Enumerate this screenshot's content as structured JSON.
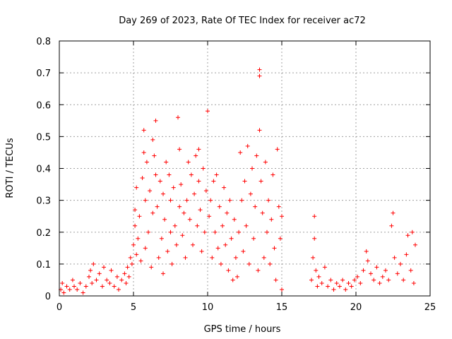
{
  "chart_data": {
    "type": "scatter",
    "title": "Day 269 of 2023, Rate Of TEC Index for receiver ac72",
    "xlabel": "GPS time / hours",
    "ylabel": "ROTI / TECUs",
    "xlim": [
      0,
      25
    ],
    "ylim": [
      0,
      0.8
    ],
    "x_ticks": [
      "0",
      "5",
      "10",
      "15",
      "20",
      "25"
    ],
    "y_ticks": [
      "0",
      "0.1",
      "0.2",
      "0.3",
      "0.4",
      "0.5",
      "0.6",
      "0.7",
      "0.8"
    ],
    "grid": true,
    "marker": "+",
    "color": "#ff0000",
    "series": [
      {
        "points": [
          [
            0.1,
            0.02
          ],
          [
            0.2,
            0.04
          ],
          [
            0.3,
            0.01
          ],
          [
            0.5,
            0.03
          ],
          [
            0.7,
            0.02
          ],
          [
            0.9,
            0.05
          ],
          [
            1.0,
            0.03
          ],
          [
            1.2,
            0.02
          ],
          [
            1.4,
            0.04
          ],
          [
            1.6,
            0.01
          ],
          [
            1.8,
            0.03
          ],
          [
            2.0,
            0.06
          ],
          [
            2.1,
            0.08
          ],
          [
            2.2,
            0.04
          ],
          [
            2.3,
            0.1
          ],
          [
            2.5,
            0.05
          ],
          [
            2.7,
            0.07
          ],
          [
            2.9,
            0.03
          ],
          [
            3.0,
            0.09
          ],
          [
            3.2,
            0.05
          ],
          [
            3.4,
            0.04
          ],
          [
            3.5,
            0.08
          ],
          [
            3.7,
            0.03
          ],
          [
            3.9,
            0.06
          ],
          [
            4.0,
            0.02
          ],
          [
            4.2,
            0.05
          ],
          [
            4.4,
            0.07
          ],
          [
            4.5,
            0.04
          ],
          [
            4.6,
            0.09
          ],
          [
            4.7,
            0.06
          ],
          [
            4.8,
            0.12
          ],
          [
            4.9,
            0.1
          ],
          [
            5.0,
            0.16
          ],
          [
            5.1,
            0.22
          ],
          [
            5.1,
            0.27
          ],
          [
            5.2,
            0.34
          ],
          [
            5.2,
            0.13
          ],
          [
            5.3,
            0.18
          ],
          [
            5.4,
            0.25
          ],
          [
            5.5,
            0.11
          ],
          [
            5.6,
            0.37
          ],
          [
            5.7,
            0.45
          ],
          [
            5.7,
            0.52
          ],
          [
            5.8,
            0.3
          ],
          [
            5.8,
            0.15
          ],
          [
            5.9,
            0.42
          ],
          [
            6.0,
            0.2
          ],
          [
            6.1,
            0.33
          ],
          [
            6.2,
            0.09
          ],
          [
            6.3,
            0.26
          ],
          [
            6.3,
            0.49
          ],
          [
            6.4,
            0.44
          ],
          [
            6.5,
            0.55
          ],
          [
            6.5,
            0.38
          ],
          [
            6.6,
            0.28
          ],
          [
            6.7,
            0.12
          ],
          [
            6.8,
            0.36
          ],
          [
            6.9,
            0.18
          ],
          [
            7.0,
            0.32
          ],
          [
            7.0,
            0.07
          ],
          [
            7.1,
            0.24
          ],
          [
            7.2,
            0.42
          ],
          [
            7.3,
            0.14
          ],
          [
            7.4,
            0.38
          ],
          [
            7.5,
            0.2
          ],
          [
            7.5,
            0.3
          ],
          [
            7.6,
            0.1
          ],
          [
            7.7,
            0.34
          ],
          [
            7.8,
            0.22
          ],
          [
            7.9,
            0.16
          ],
          [
            8.0,
            0.56
          ],
          [
            8.1,
            0.46
          ],
          [
            8.1,
            0.28
          ],
          [
            8.2,
            0.35
          ],
          [
            8.3,
            0.19
          ],
          [
            8.4,
            0.26
          ],
          [
            8.5,
            0.12
          ],
          [
            8.6,
            0.3
          ],
          [
            8.7,
            0.42
          ],
          [
            8.8,
            0.24
          ],
          [
            8.9,
            0.38
          ],
          [
            9.0,
            0.16
          ],
          [
            9.1,
            0.32
          ],
          [
            9.2,
            0.44
          ],
          [
            9.3,
            0.22
          ],
          [
            9.4,
            0.46
          ],
          [
            9.4,
            0.36
          ],
          [
            9.5,
            0.27
          ],
          [
            9.6,
            0.14
          ],
          [
            9.7,
            0.4
          ],
          [
            9.8,
            0.2
          ],
          [
            9.9,
            0.33
          ],
          [
            10.0,
            0.58
          ],
          [
            10.1,
            0.25
          ],
          [
            10.2,
            0.3
          ],
          [
            10.3,
            0.12
          ],
          [
            10.4,
            0.36
          ],
          [
            10.5,
            0.2
          ],
          [
            10.6,
            0.38
          ],
          [
            10.7,
            0.15
          ],
          [
            10.8,
            0.28
          ],
          [
            10.9,
            0.1
          ],
          [
            11.0,
            0.22
          ],
          [
            11.1,
            0.34
          ],
          [
            11.2,
            0.16
          ],
          [
            11.3,
            0.26
          ],
          [
            11.4,
            0.08
          ],
          [
            11.5,
            0.3
          ],
          [
            11.6,
            0.18
          ],
          [
            11.7,
            0.05
          ],
          [
            11.8,
            0.24
          ],
          [
            11.9,
            0.12
          ],
          [
            12.0,
            0.06
          ],
          [
            12.1,
            0.2
          ],
          [
            12.2,
            0.45
          ],
          [
            12.3,
            0.3
          ],
          [
            12.4,
            0.14
          ],
          [
            12.5,
            0.36
          ],
          [
            12.6,
            0.22
          ],
          [
            12.7,
            0.47
          ],
          [
            12.8,
            0.1
          ],
          [
            12.9,
            0.32
          ],
          [
            13.0,
            0.4
          ],
          [
            13.1,
            0.18
          ],
          [
            13.2,
            0.28
          ],
          [
            13.3,
            0.44
          ],
          [
            13.4,
            0.08
          ],
          [
            13.5,
            0.71
          ],
          [
            13.5,
            0.69
          ],
          [
            13.5,
            0.52
          ],
          [
            13.6,
            0.36
          ],
          [
            13.7,
            0.26
          ],
          [
            13.8,
            0.12
          ],
          [
            13.9,
            0.42
          ],
          [
            14.0,
            0.2
          ],
          [
            14.1,
            0.3
          ],
          [
            14.2,
            0.1
          ],
          [
            14.3,
            0.24
          ],
          [
            14.4,
            0.38
          ],
          [
            14.5,
            0.15
          ],
          [
            14.6,
            0.05
          ],
          [
            14.7,
            0.46
          ],
          [
            14.8,
            0.28
          ],
          [
            14.9,
            0.18
          ],
          [
            15.0,
            0.02
          ],
          [
            15.0,
            0.25
          ],
          [
            17.0,
            0.05
          ],
          [
            17.1,
            0.12
          ],
          [
            17.2,
            0.18
          ],
          [
            17.2,
            0.25
          ],
          [
            17.3,
            0.08
          ],
          [
            17.4,
            0.03
          ],
          [
            17.5,
            0.06
          ],
          [
            17.7,
            0.04
          ],
          [
            17.9,
            0.09
          ],
          [
            18.1,
            0.03
          ],
          [
            18.3,
            0.05
          ],
          [
            18.5,
            0.02
          ],
          [
            18.7,
            0.04
          ],
          [
            18.9,
            0.03
          ],
          [
            19.1,
            0.05
          ],
          [
            19.3,
            0.02
          ],
          [
            19.5,
            0.04
          ],
          [
            19.7,
            0.03
          ],
          [
            19.9,
            0.05
          ],
          [
            20.1,
            0.06
          ],
          [
            20.3,
            0.04
          ],
          [
            20.5,
            0.08
          ],
          [
            20.7,
            0.14
          ],
          [
            20.8,
            0.11
          ],
          [
            21.0,
            0.07
          ],
          [
            21.2,
            0.05
          ],
          [
            21.4,
            0.09
          ],
          [
            21.6,
            0.04
          ],
          [
            21.8,
            0.06
          ],
          [
            22.0,
            0.08
          ],
          [
            22.2,
            0.05
          ],
          [
            22.4,
            0.22
          ],
          [
            22.5,
            0.26
          ],
          [
            22.6,
            0.12
          ],
          [
            22.8,
            0.07
          ],
          [
            23.0,
            0.1
          ],
          [
            23.2,
            0.05
          ],
          [
            23.4,
            0.13
          ],
          [
            23.5,
            0.19
          ],
          [
            23.7,
            0.08
          ],
          [
            23.8,
            0.2
          ],
          [
            23.9,
            0.04
          ],
          [
            24.0,
            0.16
          ]
        ]
      }
    ]
  }
}
